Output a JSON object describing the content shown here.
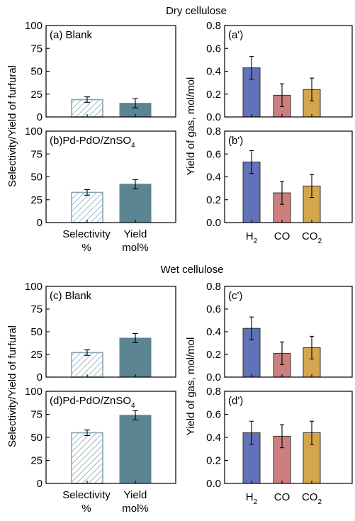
{
  "sections": [
    {
      "title": "Dry cellulose"
    },
    {
      "title": "Wet cellulose"
    }
  ],
  "y_axis_titles": {
    "left": "Selectivity/Yield of furfural",
    "right": "Yield of gas, mol/mol"
  },
  "left_categories": [
    {
      "line1": "Selectivity",
      "line2": "%"
    },
    {
      "line1": "Yield",
      "line2": "mol%"
    }
  ],
  "right_categories": [
    {
      "main": "H",
      "sub": "2"
    },
    {
      "main": "CO",
      "sub": ""
    },
    {
      "main": "CO",
      "sub": "2"
    }
  ],
  "colors": {
    "selectivity_hatch": "#86a7b4",
    "yield_bar": "#5b8593",
    "H2": "#6272b8",
    "CO": "#cd7e7e",
    "CO2": "#d3a64d"
  },
  "chart_data": [
    {
      "type": "bar",
      "panel": "(a) Blank",
      "categories": [
        "Selectivity %",
        "Yield mol%"
      ],
      "values": [
        19,
        15
      ],
      "errors": [
        3,
        5
      ],
      "yticks": [
        "0",
        "25",
        "50",
        "75",
        "100"
      ],
      "ylim": [
        0,
        100
      ],
      "ylabel": "Selectivity/Yield of furfural"
    },
    {
      "type": "bar",
      "panel": "(b)Pd-PdO/ZnSO4",
      "panel_main": "(b)Pd-PdO/ZnSO",
      "panel_sub": "4",
      "categories": [
        "Selectivity %",
        "Yield mol%"
      ],
      "values": [
        33,
        42
      ],
      "errors": [
        3,
        5
      ],
      "yticks": [
        "0",
        "25",
        "50",
        "75",
        "100"
      ],
      "ylim": [
        0,
        100
      ],
      "ylabel": "Selectivity/Yield of furfural"
    },
    {
      "type": "bar",
      "panel": "(a')",
      "categories": [
        "H2",
        "CO",
        "CO2"
      ],
      "values": [
        0.43,
        0.19,
        0.24
      ],
      "errors": [
        0.1,
        0.1,
        0.1
      ],
      "yticks": [
        "0.0",
        "0.2",
        "0.4",
        "0.6",
        "0.8"
      ],
      "ylim": [
        0,
        0.8
      ],
      "ylabel": "Yield of gas, mol/mol"
    },
    {
      "type": "bar",
      "panel": "(b')",
      "categories": [
        "H2",
        "CO",
        "CO2"
      ],
      "values": [
        0.53,
        0.26,
        0.32
      ],
      "errors": [
        0.1,
        0.1,
        0.1
      ],
      "yticks": [
        "0.0",
        "0.2",
        "0.4",
        "0.6",
        "0.8"
      ],
      "ylim": [
        0,
        0.8
      ],
      "ylabel": "Yield of gas, mol/mol"
    },
    {
      "type": "bar",
      "panel": "(c) Blank",
      "categories": [
        "Selectivity %",
        "Yield mol%"
      ],
      "values": [
        27,
        43
      ],
      "errors": [
        3,
        5
      ],
      "yticks": [
        "0",
        "25",
        "50",
        "75",
        "100"
      ],
      "ylim": [
        0,
        100
      ],
      "ylabel": "Selectivity/Yield of furfural"
    },
    {
      "type": "bar",
      "panel": "(d)Pd-PdO/ZnSO4",
      "panel_main": "(d)Pd-PdO/ZnSO",
      "panel_sub": "4",
      "categories": [
        "Selectivity %",
        "Yield mol%"
      ],
      "values": [
        55,
        74
      ],
      "errors": [
        3,
        5
      ],
      "yticks": [
        "0",
        "25",
        "50",
        "75",
        "100"
      ],
      "ylim": [
        0,
        100
      ],
      "ylabel": "Selectivity/Yield of furfural"
    },
    {
      "type": "bar",
      "panel": "(c')",
      "categories": [
        "H2",
        "CO",
        "CO2"
      ],
      "values": [
        0.43,
        0.21,
        0.26
      ],
      "errors": [
        0.1,
        0.1,
        0.1
      ],
      "yticks": [
        "0.0",
        "0.2",
        "0.4",
        "0.6",
        "0.8"
      ],
      "ylim": [
        0,
        0.8
      ],
      "ylabel": "Yield of gas, mol/mol"
    },
    {
      "type": "bar",
      "panel": "(d')",
      "categories": [
        "H2",
        "CO",
        "CO2"
      ],
      "values": [
        0.44,
        0.41,
        0.44
      ],
      "errors": [
        0.1,
        0.1,
        0.1
      ],
      "yticks": [
        "0.0",
        "0.2",
        "0.4",
        "0.6",
        "0.8"
      ],
      "ylim": [
        0,
        0.8
      ],
      "ylabel": "Yield of gas, mol/mol"
    }
  ]
}
